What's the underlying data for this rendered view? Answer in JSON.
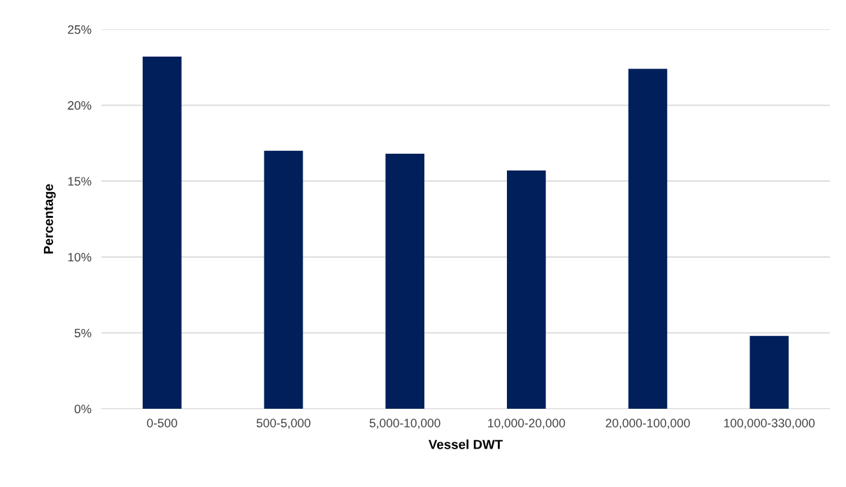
{
  "chart_data": {
    "type": "bar",
    "xlabel": "Vessel DWT",
    "ylabel": "Percentage",
    "categories": [
      "0-500",
      "500-5,000",
      "5,000-10,000",
      "10,000-20,000",
      "20,000-100,000",
      "100,000-330,000"
    ],
    "values": [
      23.2,
      17.0,
      16.8,
      15.7,
      22.4,
      4.8
    ],
    "color": "#001f5b",
    "ylim": [
      0,
      25
    ],
    "yticks": [
      {
        "value": 0,
        "label": "0%"
      },
      {
        "value": 5,
        "label": "5%"
      },
      {
        "value": 10,
        "label": "10%"
      },
      {
        "value": 15,
        "label": "15%"
      },
      {
        "value": 20,
        "label": "20%"
      },
      {
        "value": 25,
        "label": "25%"
      }
    ],
    "grid": "y",
    "legend": false
  }
}
